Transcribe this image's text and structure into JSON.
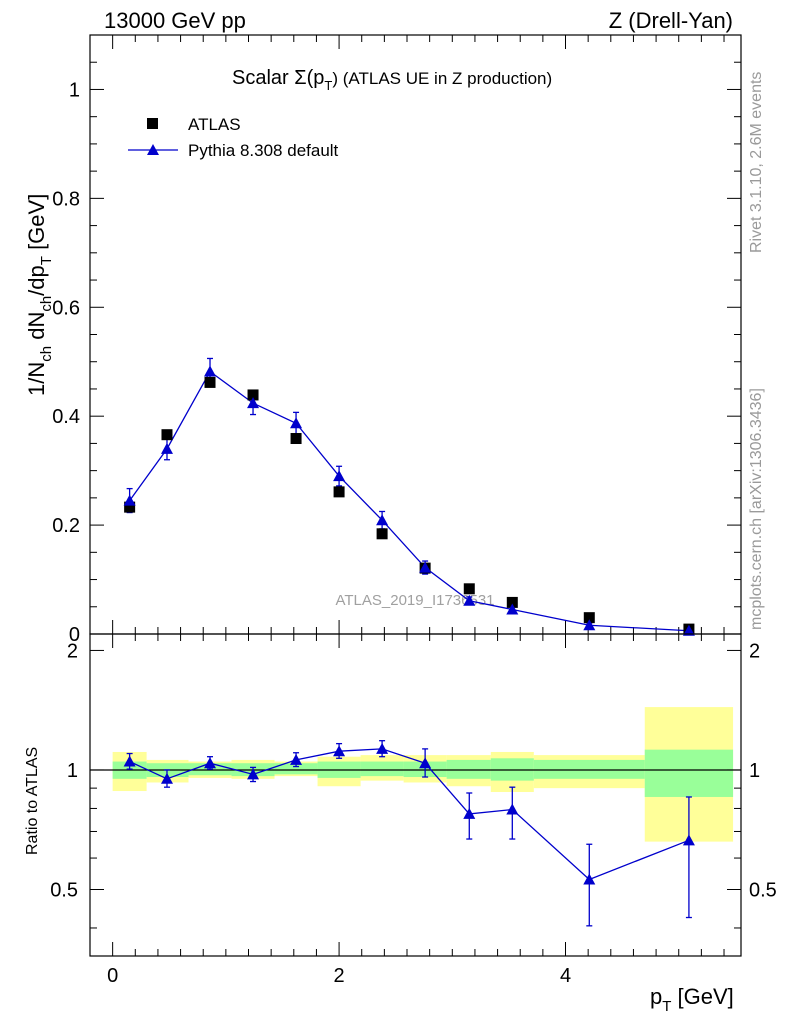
{
  "header": {
    "left": "13000 GeV pp",
    "right": "Z (Drell-Yan)"
  },
  "side_labels": {
    "rivet": "Rivet 3.1.10,  2.6M events",
    "mcplots": "mcplots.cern.ch [arXiv:1306.3436]"
  },
  "watermark": "ATLAS_2019_I1736531",
  "chart_data": [
    {
      "type": "scatter",
      "title": "Scalar Σ(p_T) (ATLAS UE in Z production)",
      "title_parts": {
        "prefix": "Scalar ",
        "sigma": "Σ(p",
        "sub": "T",
        "suffix": ") (ATLAS UE in Z production)"
      },
      "xlabel": "p_T [GeV]",
      "ylabel": "1/N_ch dN_ch/dp_T [GeV]",
      "xlim": [
        -0.2,
        5.55
      ],
      "ylim": [
        0,
        1.1
      ],
      "x_ticks": [
        0,
        2,
        4
      ],
      "x_tick_labels": [
        "0",
        "2",
        "4"
      ],
      "y_ticks": [
        0,
        0.2,
        0.4,
        0.6,
        0.8,
        1
      ],
      "y_tick_labels": [
        "0",
        "0.2",
        "0.4",
        "0.6",
        "0.8",
        "1"
      ],
      "legend": {
        "position": "top-left",
        "entries": [
          "ATLAS",
          "Pythia 8.308 default"
        ]
      },
      "series": [
        {
          "name": "ATLAS",
          "marker": "square",
          "color": "#000000",
          "x": [
            0.15,
            0.48,
            0.86,
            1.24,
            1.62,
            2.0,
            2.38,
            2.76,
            3.15,
            3.53,
            4.21,
            5.09
          ],
          "y": [
            0.233,
            0.366,
            0.462,
            0.439,
            0.359,
            0.261,
            0.184,
            0.121,
            0.083,
            0.058,
            0.03,
            0.009
          ]
        },
        {
          "name": "Pythia 8.308 default",
          "marker": "triangle",
          "color": "#0000cc",
          "x": [
            0.15,
            0.48,
            0.86,
            1.24,
            1.62,
            2.0,
            2.38,
            2.76,
            3.15,
            3.53,
            4.21,
            5.09
          ],
          "y": [
            0.245,
            0.34,
            0.482,
            0.424,
            0.387,
            0.29,
            0.209,
            0.122,
            0.061,
            0.045,
            0.016,
            0.006
          ],
          "err": [
            0.022,
            0.02,
            0.024,
            0.021,
            0.02,
            0.018,
            0.016,
            0.012,
            0.007,
            0.006,
            0.004,
            0.003
          ]
        }
      ]
    },
    {
      "type": "line",
      "ylabel": "Ratio to ATLAS",
      "xlabel": "p_T [GeV]",
      "xlim": [
        -0.2,
        5.55
      ],
      "ylim": [
        0.34,
        2.2
      ],
      "y_ticks": [
        0.5,
        1,
        2
      ],
      "y_tick_labels": [
        "0.5",
        "1",
        "2"
      ],
      "reference_line": 1,
      "bands": {
        "edges": [
          0.0,
          0.3,
          0.67,
          1.05,
          1.43,
          1.81,
          2.19,
          2.57,
          2.95,
          3.34,
          3.72,
          4.7,
          5.48
        ],
        "green_lo": [
          0.95,
          0.96,
          0.97,
          0.965,
          0.975,
          0.955,
          0.965,
          0.96,
          0.95,
          0.94,
          0.95,
          0.855
        ],
        "green_hi": [
          1.05,
          1.04,
          1.04,
          1.04,
          1.04,
          1.05,
          1.05,
          1.05,
          1.06,
          1.07,
          1.06,
          1.125
        ],
        "yellow_lo": [
          0.885,
          0.93,
          0.955,
          0.95,
          0.965,
          0.91,
          0.94,
          0.93,
          0.91,
          0.88,
          0.9,
          0.66
        ],
        "yellow_hi": [
          1.11,
          1.06,
          1.05,
          1.06,
          1.05,
          1.08,
          1.09,
          1.09,
          1.09,
          1.11,
          1.09,
          1.44
        ]
      },
      "series": [
        {
          "name": "Pythia 8.308 default",
          "color": "#0000cc",
          "x": [
            0.15,
            0.48,
            0.86,
            1.24,
            1.62,
            2.0,
            2.38,
            2.76,
            3.15,
            3.53,
            4.21,
            5.09
          ],
          "y": [
            1.05,
            0.95,
            1.04,
            0.975,
            1.06,
            1.115,
            1.13,
            1.04,
            0.775,
            0.795,
            0.53,
            0.665
          ],
          "err_lo": [
            0.045,
            0.045,
            0.035,
            0.04,
            0.04,
            0.045,
            0.05,
            0.08,
            0.105,
            0.125,
            0.125,
            0.24
          ],
          "err_hi": [
            0.05,
            0.05,
            0.04,
            0.04,
            0.045,
            0.05,
            0.055,
            0.09,
            0.1,
            0.11,
            0.12,
            0.19
          ]
        }
      ]
    }
  ]
}
